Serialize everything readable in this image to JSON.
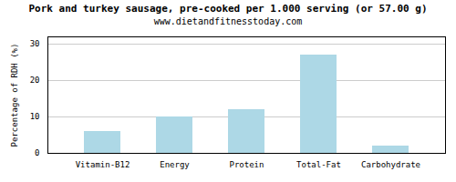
{
  "chart_data": {
    "type": "bar",
    "title": "Pork and turkey sausage, pre-cooked per 1.000 serving (or 57.00 g)",
    "subtitle": "www.dietandfitnesstoday.com",
    "categories": [
      "Vitamin-B12",
      "Energy",
      "Protein",
      "Total-Fat",
      "Carbohydrate"
    ],
    "values": [
      6,
      10,
      12,
      27,
      2
    ],
    "color": "#add8e6",
    "ylabel": "Percentage of RDH (%)",
    "ylim": [
      0,
      32
    ],
    "yticks": [
      0,
      10,
      20,
      30
    ],
    "grid": true
  }
}
